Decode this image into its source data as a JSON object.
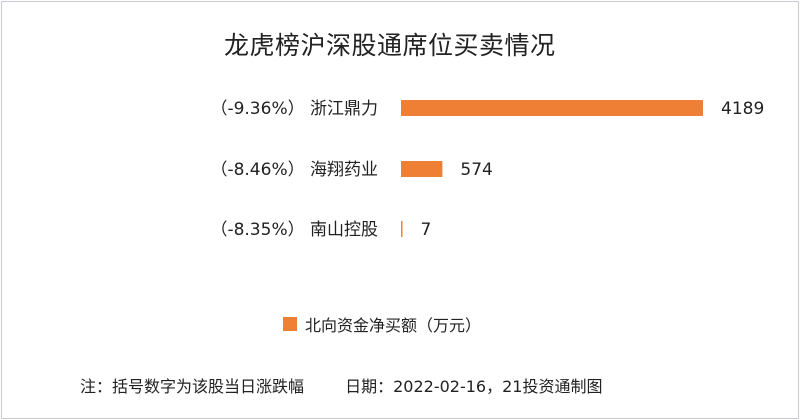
{
  "chart_data": {
    "type": "bar",
    "orientation": "horizontal",
    "title": "龙虎榜沪深股通席位买卖情况",
    "categories": [
      "（-9.36%） 浙江鼎力",
      "（-8.46%） 海翔药业",
      "（-8.35%） 南山控股"
    ],
    "values": [
      4189,
      574,
      7
    ],
    "value_labels": [
      "4189",
      "574",
      "7"
    ],
    "series": [
      {
        "name": "北向资金净买额（万元）",
        "values": [
          4189,
          574,
          7
        ]
      }
    ],
    "color": "#ef7f34",
    "xlim": [
      0,
      4189
    ],
    "grid": false,
    "legend": "bottom-center"
  },
  "footer": {
    "note": "注：括号数字为该股当日涨跌幅",
    "date": "日期：2022-02-16，21投资通制图"
  }
}
